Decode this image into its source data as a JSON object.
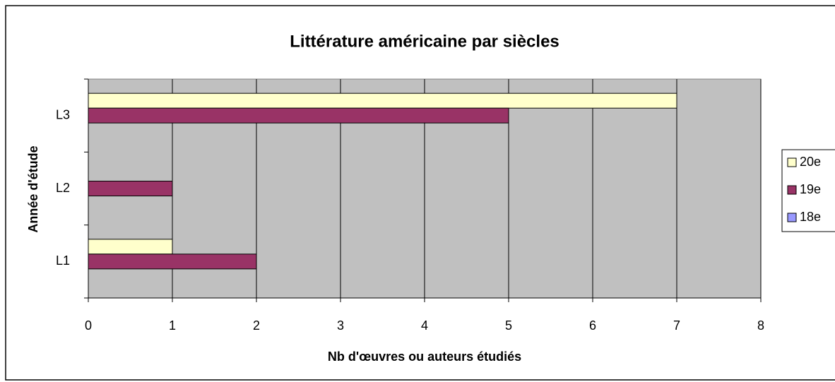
{
  "chart_data": {
    "type": "bar",
    "orientation": "horizontal",
    "title": "Littérature américaine par siècles",
    "x_label": "Nb d'œuvres ou auteurs étudiés",
    "y_label": "Année d'étude",
    "categories": [
      "L1",
      "L2",
      "L3"
    ],
    "series": [
      {
        "name": "20e",
        "color": "#ffffcc",
        "values": [
          1,
          0,
          7
        ]
      },
      {
        "name": "19e",
        "color": "#993366",
        "values": [
          2,
          1,
          5
        ]
      },
      {
        "name": "18e",
        "color": "#9999ff",
        "values": [
          0,
          0,
          0
        ]
      }
    ],
    "xlim": [
      0,
      8
    ],
    "xticks": [
      0,
      1,
      2,
      3,
      4,
      5,
      6,
      7,
      8
    ],
    "grid": true,
    "legend": "right"
  }
}
